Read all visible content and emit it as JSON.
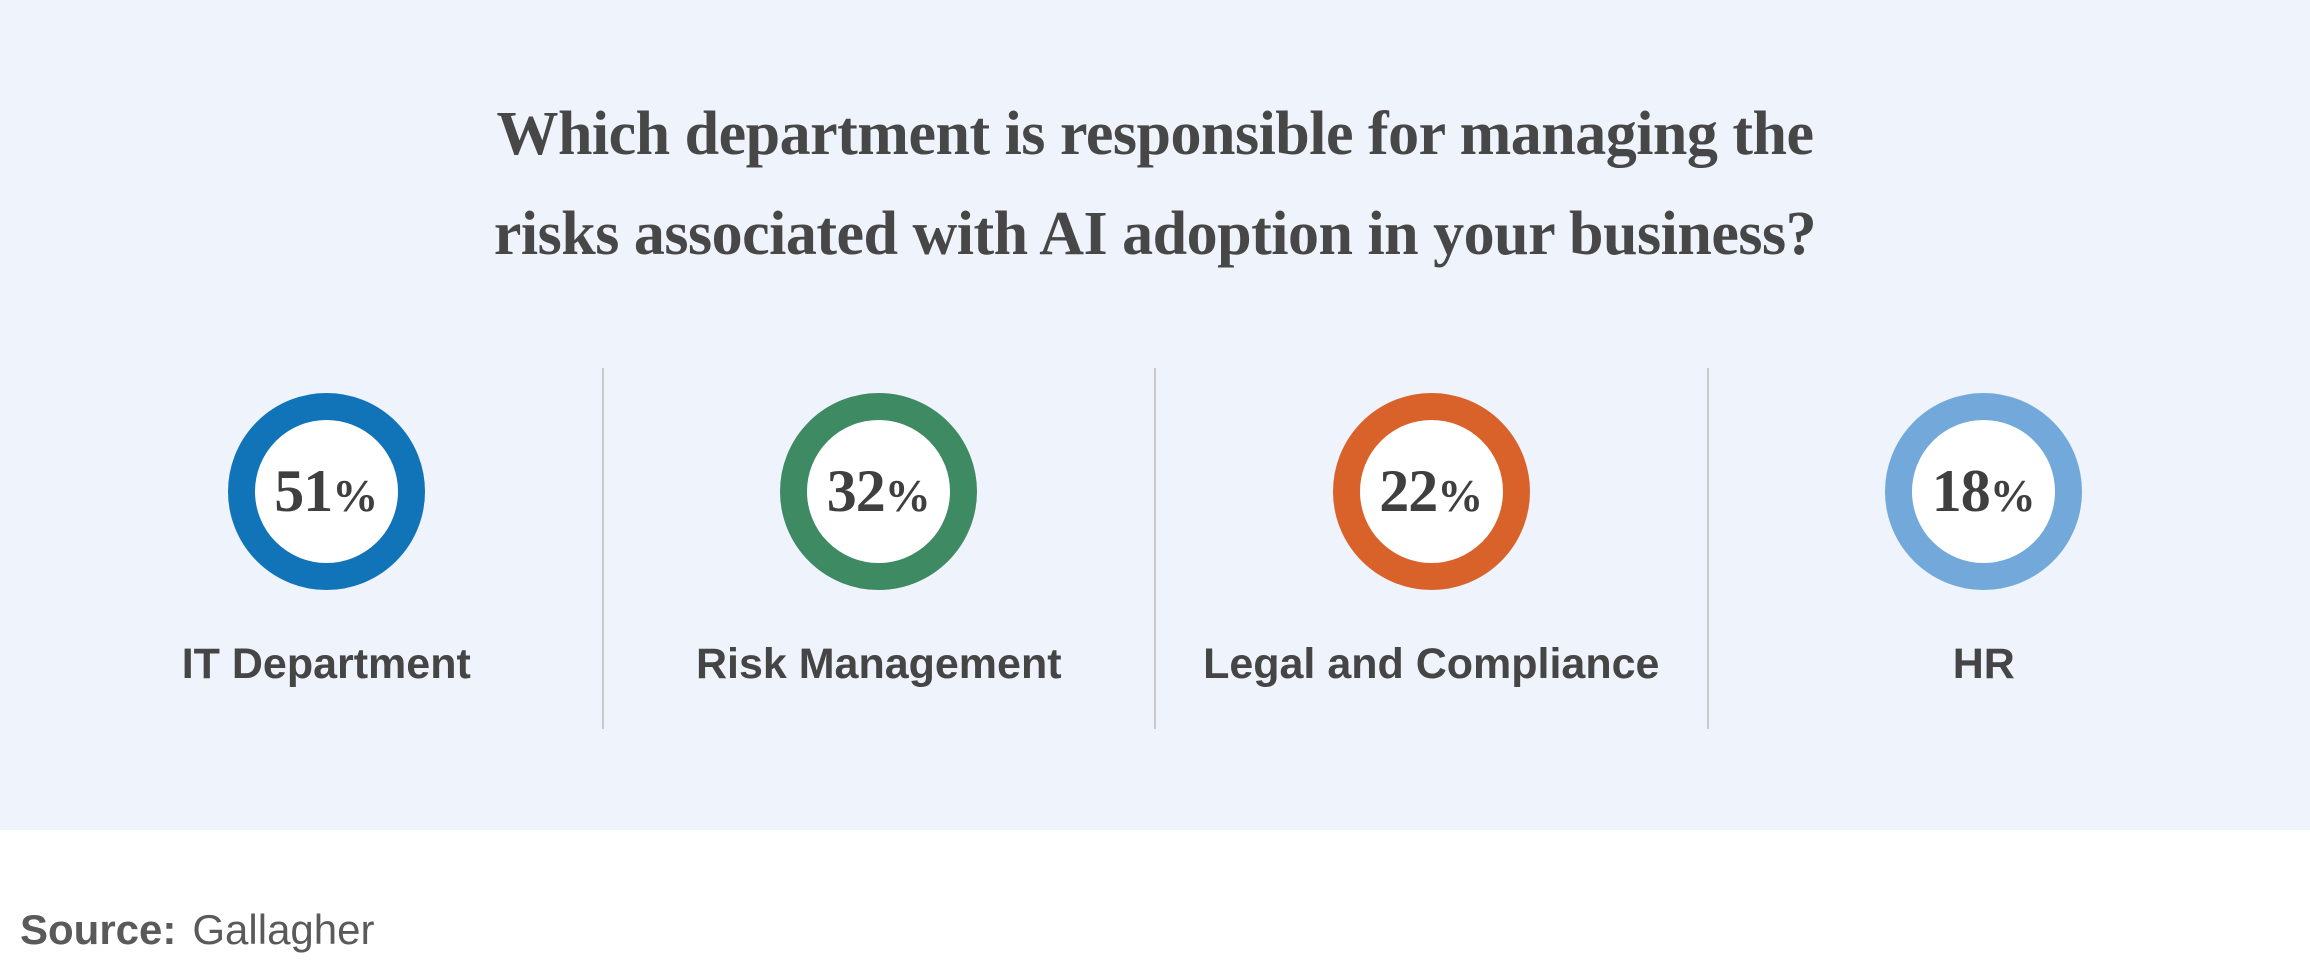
{
  "title": {
    "line1": "Which department is responsible for managing the",
    "line2": "risks associated with AI adoption in your business?"
  },
  "stats": [
    {
      "value": "51",
      "percent_sign": "%",
      "label": "IT Department",
      "ring_color": "#1173b8"
    },
    {
      "value": "32",
      "percent_sign": "%",
      "label": "Risk Management",
      "ring_color": "#3e8a63"
    },
    {
      "value": "22",
      "percent_sign": "%",
      "label": "Legal and Compliance",
      "ring_color": "#d9622b"
    },
    {
      "value": "18",
      "percent_sign": "%",
      "label": "HR",
      "ring_color": "#73a9da"
    }
  ],
  "source": {
    "label": "Source:",
    "value": "Gallagher"
  },
  "colors": {
    "panel_background": "#eff3fc",
    "page_background": "#ffffff",
    "title_text": "#474747",
    "number_text": "#3f3f3f",
    "label_text": "#454545",
    "divider": "#c9c9c9",
    "source_text": "#5a5a5a",
    "ring_blue": "#1173b8",
    "ring_green": "#3e8a63",
    "ring_orange": "#d9622b",
    "ring_light_blue": "#73a9da"
  },
  "chart_data": {
    "type": "bar",
    "visual_style": "percentage-circles",
    "title": "Which department is responsible for managing the risks associated with AI adoption in your business?",
    "categories": [
      "IT Department",
      "Risk Management",
      "Legal and Compliance",
      "HR"
    ],
    "values": [
      51,
      32,
      22,
      18
    ],
    "unit": "%",
    "series_colors": [
      "#1173b8",
      "#3e8a63",
      "#d9622b",
      "#73a9da"
    ],
    "xlabel": "",
    "ylabel": "",
    "ylim": [
      0,
      100
    ],
    "grid": false,
    "legend": false,
    "source": "Gallagher"
  }
}
